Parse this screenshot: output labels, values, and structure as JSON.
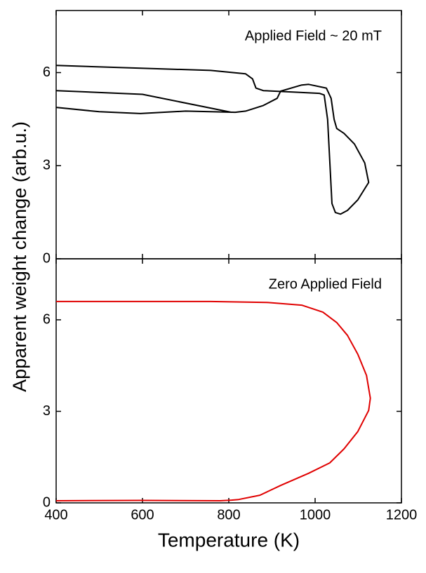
{
  "ylabel": "Apparent weight change (arb.u.)",
  "xlabel": "Temperature (K)",
  "chart_data": [
    {
      "type": "line",
      "annotation": "Applied Field ~ 20 mT",
      "color": "#000000",
      "x": [
        400,
        758,
        839,
        855,
        863,
        880,
        953,
        1010,
        1021,
        1029,
        1034,
        1039,
        1047,
        1059,
        1075,
        1099,
        1124,
        1115,
        1091,
        1067,
        1050,
        1044,
        1037,
        1026,
        985,
        969,
        920,
        912,
        880,
        839,
        815,
        700,
        595,
        500,
        400,
        null,
        400,
        600,
        806
      ],
      "values": [
        6.23,
        6.07,
        5.96,
        5.8,
        5.5,
        5.42,
        5.37,
        5.33,
        5.28,
        4.49,
        3.14,
        1.78,
        1.49,
        1.44,
        1.56,
        1.9,
        2.46,
        3.09,
        3.7,
        4.04,
        4.2,
        4.49,
        5.17,
        5.5,
        5.62,
        5.6,
        5.4,
        5.17,
        4.94,
        4.76,
        4.72,
        4.76,
        4.68,
        4.74,
        4.88,
        null,
        5.42,
        5.3,
        4.72
      ],
      "xlim": [
        400,
        1200
      ],
      "ylim": [
        0,
        8
      ],
      "yticks": [
        0,
        3,
        6
      ]
    },
    {
      "type": "line",
      "annotation": "Zero Applied Field",
      "color": "#e00000",
      "x": [
        400,
        600,
        780,
        806,
        823,
        872,
        920,
        985,
        1034,
        1067,
        1099,
        1124,
        1128,
        1119,
        1099,
        1075,
        1050,
        1018,
        969,
        888,
        758,
        400
      ],
      "values": [
        0.07,
        0.08,
        0.07,
        0.09,
        0.11,
        0.25,
        0.57,
        0.97,
        1.31,
        1.77,
        2.34,
        3.03,
        3.43,
        4.18,
        4.87,
        5.49,
        5.91,
        6.25,
        6.48,
        6.57,
        6.6,
        6.6
      ],
      "xlim": [
        400,
        1200
      ],
      "ylim": [
        0,
        8
      ],
      "xticks": [
        400,
        600,
        800,
        1000,
        1200
      ],
      "yticks": [
        0,
        3,
        6
      ]
    }
  ]
}
